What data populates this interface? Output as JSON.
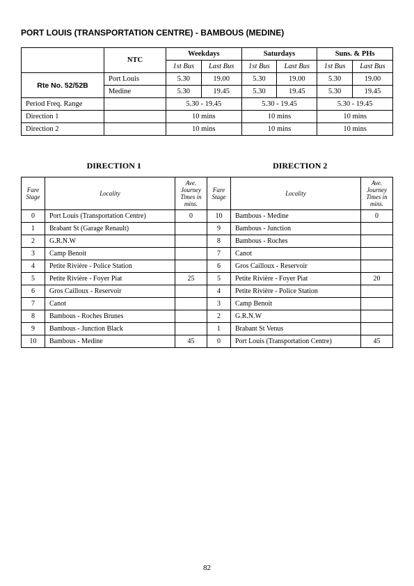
{
  "title": "PORT LOUIS (TRANSPORTATION CENTRE) - BAMBOUS (MEDINE)",
  "ntc": "NTC",
  "route_no_label": "Rte No. 52/52B",
  "day_headers": [
    "Weekdays",
    "Saturdays",
    "Suns. & PHs"
  ],
  "sub_headers": [
    "1st Bus",
    "Last Bus"
  ],
  "origin_rows": [
    {
      "name": "Port Louis",
      "wk_first": "5.30",
      "wk_last": "19.00",
      "sa_first": "5.30",
      "sa_last": "19.00",
      "su_first": "5.30",
      "su_last": "19.00"
    },
    {
      "name": "Medine",
      "wk_first": "5.30",
      "wk_last": "19.45",
      "sa_first": "5.30",
      "sa_last": "19.45",
      "su_first": "5.30",
      "su_last": "19.45"
    }
  ],
  "period_label": "Period Freq. Range",
  "period_vals": [
    "5.30 - 19.45",
    "5.30 - 19.45",
    "5.30 - 19.45"
  ],
  "dir1_label": "Direction 1",
  "dir2_label": "Direction 2",
  "freq_vals": [
    "10 mins",
    "10 mins",
    "10 mins"
  ],
  "dir1_heading": "DIRECTION  1",
  "dir2_heading": "DIRECTION  2",
  "fare_headers": {
    "stage": "Fare Stage",
    "locality": "Locality",
    "time": "Ave. Journey Times in mins."
  },
  "dir1": [
    {
      "s": "0",
      "loc": "Port Louis (Transportation Centre)",
      "t": "0"
    },
    {
      "s": "1",
      "loc": "Brabant St (Garage Renault)",
      "t": ""
    },
    {
      "s": "2",
      "loc": "G.R.N.W",
      "t": ""
    },
    {
      "s": "3",
      "loc": "Camp Benoit",
      "t": ""
    },
    {
      "s": "4",
      "loc": "Petite Rivière - Police Station",
      "t": ""
    },
    {
      "s": "5",
      "loc": "Petite Rivière - Foyer Piat",
      "t": "25"
    },
    {
      "s": "6",
      "loc": "Gros Cailloux - Reservoir",
      "t": ""
    },
    {
      "s": "7",
      "loc": "Canot",
      "t": ""
    },
    {
      "s": "8",
      "loc": "Bambous - Roches Brunes",
      "t": ""
    },
    {
      "s": "9",
      "loc": "Bambous - Junction Black",
      "t": ""
    },
    {
      "s": "10",
      "loc": "Bambous - Medine",
      "t": "45"
    }
  ],
  "dir2": [
    {
      "s": "10",
      "loc": "Bambous - Medine",
      "t": "0"
    },
    {
      "s": "9",
      "loc": "Bambous - Junction",
      "t": ""
    },
    {
      "s": "8",
      "loc": "Bambous - Roches",
      "t": ""
    },
    {
      "s": "7",
      "loc": "Canot",
      "t": ""
    },
    {
      "s": "6",
      "loc": "Gros Cailloux - Reservoir",
      "t": ""
    },
    {
      "s": "5",
      "loc": "Petite Rivière - Foyer Piat",
      "t": "20"
    },
    {
      "s": "4",
      "loc": "Petite Rivière - Police Station",
      "t": ""
    },
    {
      "s": "3",
      "loc": "Camp Benoit",
      "t": ""
    },
    {
      "s": "2",
      "loc": "G.R.N.W",
      "t": ""
    },
    {
      "s": "1",
      "loc": "Brabant St Venus",
      "t": ""
    },
    {
      "s": "0",
      "loc": "Port Louis (Transportation Centre)",
      "t": "45"
    }
  ],
  "page_number": "82"
}
